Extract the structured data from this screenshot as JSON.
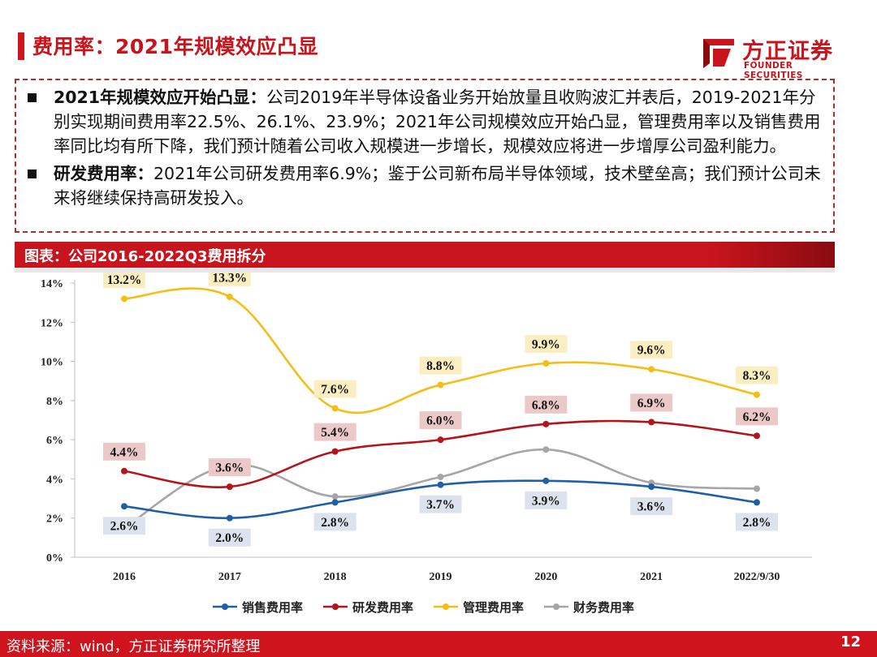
{
  "header": {
    "title": "费用率：2021年规模效应凸显",
    "logo_cn": "方正证券",
    "logo_en": "FOUNDER SECURITIES"
  },
  "notes": [
    {
      "bold": "2021年规模效应开始凸显：",
      "text": "公司2019年半导体设备业务开始放量且收购波汇并表后，2019-2021年分别实现期间费用率22.5%、26.1%、23.9%；2021年公司规模效应开始凸显，管理费用率以及销售费用率同比均有所下降，我们预计随着公司收入规模进一步增长，规模效应将进一步增厚公司盈利能力。"
    },
    {
      "bold": "研发费用率：",
      "text": "2021年公司研发费用率6.9%；鉴于公司新布局半导体领域，技术壁垒高；我们预计公司未来将继续保持高研发投入。"
    }
  ],
  "chart_header": "图表：公司2016-2022Q3费用拆分",
  "chart_data": {
    "type": "line",
    "title": "公司2016-2022Q3费用拆分",
    "categories": [
      "2016",
      "2017",
      "2018",
      "2019",
      "2020",
      "2021",
      "2022/9/30"
    ],
    "ylim": [
      0,
      14
    ],
    "yticks": [
      0,
      2,
      4,
      6,
      8,
      10,
      12,
      14
    ],
    "ytick_labels": [
      "0%",
      "2%",
      "4%",
      "6%",
      "8%",
      "10%",
      "12%",
      "14%"
    ],
    "grid": false,
    "legend": "bottom",
    "series": [
      {
        "name": "销售费用率",
        "color": "#1f5fa8",
        "values": [
          2.6,
          2.0,
          2.8,
          3.7,
          3.9,
          3.6,
          2.8
        ],
        "labels": [
          "2.6%",
          "2.0%",
          "2.8%",
          "3.7%",
          "3.9%",
          "3.6%",
          "2.8%"
        ],
        "label_bg": "#dde3ee",
        "label_pos": "below"
      },
      {
        "name": "研发费用率",
        "color": "#b5141b",
        "values": [
          4.4,
          3.6,
          5.4,
          6.0,
          6.8,
          6.9,
          6.2
        ],
        "labels": [
          "4.4%",
          "3.6%",
          "5.4%",
          "6.0%",
          "6.8%",
          "6.9%",
          "6.2%"
        ],
        "label_bg": "#ecc9c9",
        "label_pos": "above"
      },
      {
        "name": "管理费用率",
        "color": "#f5be14",
        "values": [
          13.2,
          13.3,
          7.6,
          8.8,
          9.9,
          9.6,
          8.3
        ],
        "labels": [
          "13.2%",
          "13.3%",
          "7.6%",
          "8.8%",
          "9.9%",
          "9.6%",
          "8.3%"
        ],
        "label_bg": "#fbeec0",
        "label_pos": "above"
      },
      {
        "name": "财务费用率",
        "color": "#a6a6a6",
        "values": [
          1.5,
          4.7,
          3.1,
          4.1,
          5.5,
          3.8,
          3.5
        ],
        "labels": [],
        "label_bg": "",
        "label_pos": "none"
      }
    ]
  },
  "footer": {
    "source": "资料来源：wind，方正证券研究所整理",
    "page": "12"
  }
}
